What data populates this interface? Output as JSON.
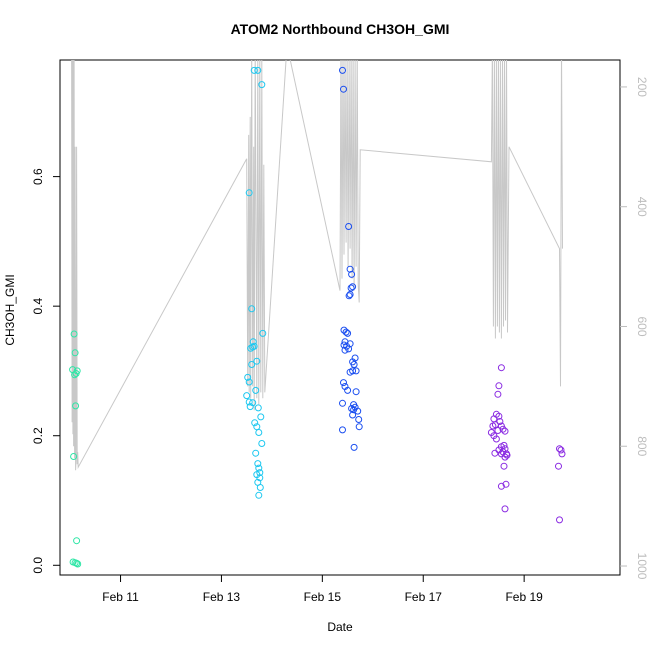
{
  "chart_data": {
    "type": "scatter",
    "title": "ATOM2 Northbound CH3OH_GMI",
    "xlabel": "Date",
    "ylabel": "CH3OH_GMI",
    "x_unit": "days (February, fractional)",
    "xlim": [
      9.8,
      20.9
    ],
    "ylim": [
      -0.015,
      0.78
    ],
    "x_ticks": [
      11,
      13,
      15,
      17,
      19
    ],
    "x_tick_labels": [
      "Feb 11",
      "Feb 13",
      "Feb 15",
      "Feb 17",
      "Feb 19"
    ],
    "y_ticks": [
      0.0,
      0.2,
      0.4,
      0.6
    ],
    "y_tick_labels": [
      "0.0",
      "0.2",
      "0.4",
      "0.6"
    ],
    "y2_ticks": [
      200,
      400,
      600,
      800,
      1000
    ],
    "y2_tick_labels": [
      "200",
      "400",
      "600",
      "800",
      "1000"
    ],
    "y2_range": [
      1015,
      155
    ],
    "grid": false,
    "legend": "none",
    "colors": {
      "line": "#c8c8c8",
      "axis": "#000000",
      "right_axis": "#bdbdbd",
      "series": [
        "#2ee6a6",
        "#1ec8f0",
        "#1a4ef0",
        "#8a2be2"
      ]
    },
    "series": [
      {
        "color": "#2ee6a6",
        "x": [
          10.08,
          10.1,
          10.05,
          10.12,
          10.14,
          10.09,
          10.11,
          10.07,
          10.13,
          10.06,
          10.1,
          10.13,
          10.15
        ],
        "y": [
          0.357,
          0.328,
          0.302,
          0.296,
          0.3,
          0.294,
          0.246,
          0.168,
          0.038,
          0.005,
          0.004,
          0.003,
          0.002
        ]
      },
      {
        "color": "#1ec8f0",
        "x": [
          13.55,
          13.6,
          13.63,
          13.65,
          13.62,
          13.58,
          13.7,
          13.52,
          13.55,
          13.6,
          13.68,
          13.72,
          13.65,
          13.8,
          13.82,
          13.5,
          13.55,
          13.62,
          13.57,
          13.73,
          13.78,
          13.66,
          13.7,
          13.74,
          13.8,
          13.68,
          13.72,
          13.74,
          13.76,
          13.7,
          13.76,
          13.72,
          13.77,
          13.74
        ],
        "y": [
          0.575,
          0.396,
          0.345,
          0.338,
          0.337,
          0.335,
          0.315,
          0.29,
          0.283,
          0.31,
          0.27,
          0.764,
          0.764,
          0.742,
          0.358,
          0.262,
          0.252,
          0.251,
          0.245,
          0.243,
          0.229,
          0.22,
          0.214,
          0.205,
          0.188,
          0.173,
          0.157,
          0.15,
          0.143,
          0.14,
          0.135,
          0.128,
          0.12,
          0.108
        ]
      },
      {
        "color": "#1a4ef0",
        "x": [
          15.4,
          15.42,
          15.52,
          15.55,
          15.58,
          15.6,
          15.57,
          15.55,
          15.53,
          15.43,
          15.47,
          15.5,
          15.55,
          15.45,
          15.43,
          15.48,
          15.52,
          15.45,
          15.65,
          15.6,
          15.63,
          15.67,
          15.55,
          15.6,
          15.42,
          15.45,
          15.5,
          15.67,
          15.4,
          15.62,
          15.65,
          15.58,
          15.62,
          15.7,
          15.6,
          15.72,
          15.73,
          15.4,
          15.63
        ],
        "y": [
          0.764,
          0.735,
          0.523,
          0.457,
          0.449,
          0.43,
          0.428,
          0.418,
          0.416,
          0.363,
          0.36,
          0.358,
          0.342,
          0.345,
          0.34,
          0.338,
          0.334,
          0.332,
          0.32,
          0.314,
          0.31,
          0.3,
          0.298,
          0.3,
          0.282,
          0.276,
          0.27,
          0.268,
          0.25,
          0.248,
          0.244,
          0.242,
          0.24,
          0.238,
          0.232,
          0.225,
          0.214,
          0.209,
          0.182
        ]
      },
      {
        "color": "#8a2be2",
        "x": [
          18.55,
          18.5,
          18.48,
          18.4,
          18.45,
          18.5,
          18.52,
          18.38,
          18.43,
          18.55,
          18.48,
          18.35,
          18.4,
          18.62,
          18.58,
          18.45,
          18.6,
          18.55,
          18.62,
          18.5,
          18.42,
          18.58,
          18.65,
          18.66,
          18.55,
          18.62,
          18.6,
          18.64,
          18.55,
          18.62,
          19.7,
          19.73,
          19.75,
          19.68
        ],
        "y": [
          0.305,
          0.277,
          0.264,
          0.226,
          0.233,
          0.23,
          0.222,
          0.215,
          0.217,
          0.215,
          0.208,
          0.205,
          0.2,
          0.207,
          0.21,
          0.195,
          0.185,
          0.183,
          0.18,
          0.178,
          0.173,
          0.175,
          0.172,
          0.17,
          0.172,
          0.167,
          0.153,
          0.125,
          0.122,
          0.087,
          0.18,
          0.178,
          0.172,
          0.153
        ]
      },
      {
        "color": "#8a2be2",
        "x": [
          19.7
        ],
        "y": [
          0.07
        ]
      }
    ],
    "pressure_line": {
      "x": [
        10.03,
        10.04,
        10.05,
        10.055,
        10.06,
        10.07,
        10.08,
        10.09,
        10.1,
        10.11,
        10.12,
        10.13,
        10.14,
        10.15,
        10.16,
        13.5,
        13.52,
        13.54,
        13.55,
        13.57,
        13.58,
        13.6,
        13.62,
        13.64,
        13.65,
        13.67,
        13.7,
        13.72,
        13.74,
        13.76,
        13.78,
        13.8,
        13.82,
        13.84,
        13.86,
        14.3,
        15.35,
        15.37,
        15.39,
        15.41,
        15.43,
        15.45,
        15.47,
        15.49,
        15.51,
        15.53,
        15.55,
        15.57,
        15.59,
        15.61,
        15.63,
        15.65,
        15.67,
        15.69,
        15.71,
        15.73,
        15.75,
        18.35,
        18.37,
        18.39,
        18.41,
        18.43,
        18.45,
        18.47,
        18.49,
        18.51,
        18.53,
        18.55,
        18.57,
        18.59,
        18.61,
        18.63,
        18.65,
        18.67,
        18.7,
        19.7,
        19.72,
        19.74,
        19.76
      ],
      "y": [
        130,
        760,
        130,
        780,
        130,
        800,
        130,
        820,
        300,
        840,
        820,
        300,
        830,
        810,
        835,
        320,
        700,
        280,
        710,
        250,
        720,
        130,
        700,
        300,
        740,
        130,
        720,
        150,
        730,
        130,
        710,
        150,
        720,
        330,
        710,
        130,
        540,
        130,
        520,
        140,
        480,
        150,
        460,
        140,
        500,
        150,
        470,
        130,
        520,
        140,
        540,
        150,
        500,
        130,
        530,
        560,
        305,
        325,
        130,
        600,
        140,
        620,
        150,
        600,
        130,
        610,
        150,
        620,
        140,
        600,
        150,
        590,
        130,
        610,
        300,
        470,
        700,
        130,
        470
      ]
    }
  }
}
